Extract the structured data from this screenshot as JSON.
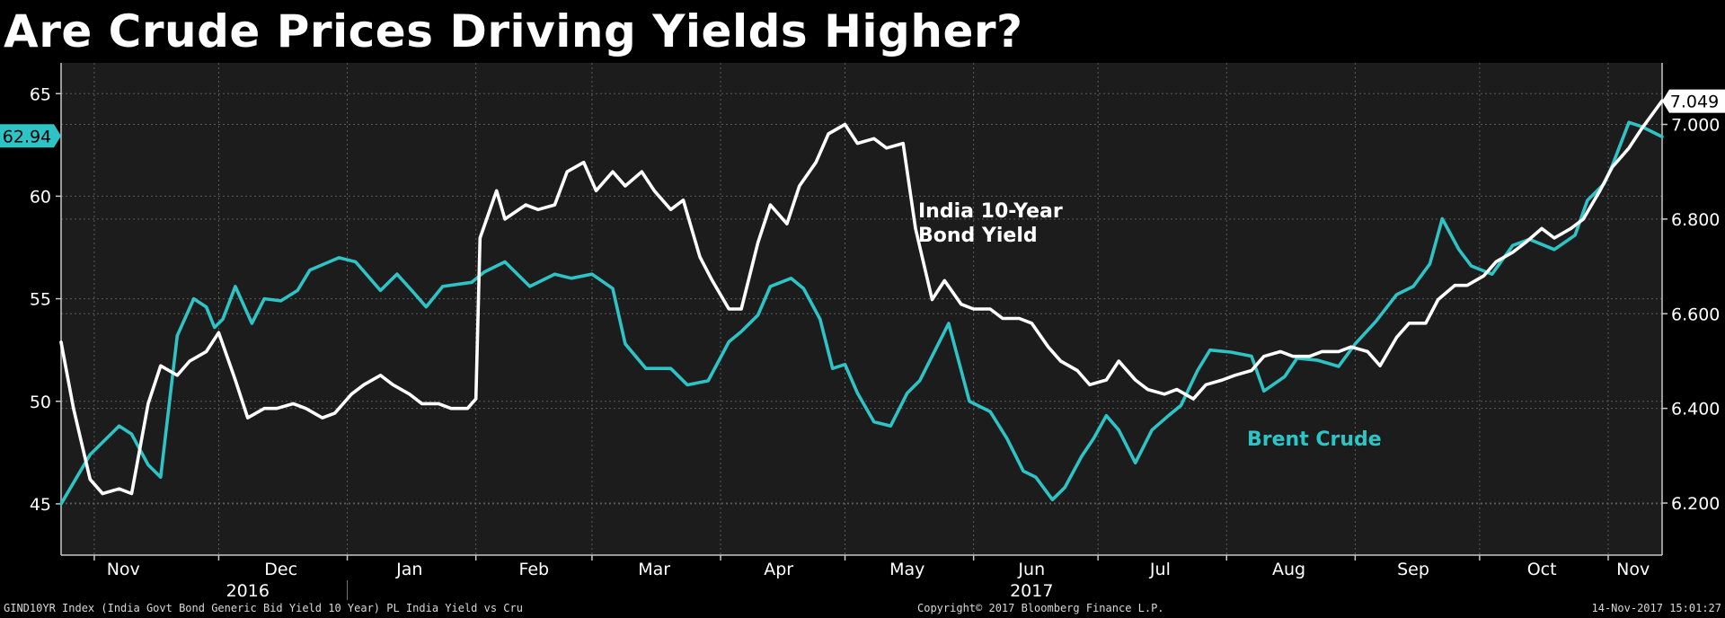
{
  "chart_data": {
    "type": "line",
    "title": "Are Crude Prices Driving Yields Higher?",
    "x_months": [
      "Nov",
      "Dec",
      "Jan",
      "Feb",
      "Mar",
      "Apr",
      "May",
      "Jun",
      "Jul",
      "Aug",
      "Sep",
      "Oct",
      "Nov"
    ],
    "x_years": [
      "2016",
      "2017"
    ],
    "x_range": [
      "2016-10-24",
      "2017-11-14"
    ],
    "left_axis": {
      "ticks": [
        "45",
        "50",
        "55",
        "60",
        "65"
      ],
      "range": [
        42.5,
        66.5
      ],
      "current_value_label": "62.94"
    },
    "right_axis": {
      "ticks": [
        "6.200",
        "6.400",
        "6.600",
        "6.800",
        "7.000"
      ],
      "range": [
        6.09,
        7.13
      ],
      "current_value_label": "7.049"
    },
    "grid": true,
    "series": [
      {
        "name": "Brent Crude",
        "axis": "left",
        "color": "#2ec4c6",
        "x": [
          "2016-10-24",
          "2016-10-31",
          "2016-11-07",
          "2016-11-10",
          "2016-11-14",
          "2016-11-17",
          "2016-11-21",
          "2016-11-25",
          "2016-11-28",
          "2016-11-30",
          "2016-12-02",
          "2016-12-05",
          "2016-12-09",
          "2016-12-12",
          "2016-12-16",
          "2016-12-20",
          "2016-12-23",
          "2016-12-30",
          "2017-01-03",
          "2017-01-09",
          "2017-01-13",
          "2017-01-17",
          "2017-01-20",
          "2017-01-24",
          "2017-01-31",
          "2017-02-03",
          "2017-02-08",
          "2017-02-14",
          "2017-02-20",
          "2017-02-24",
          "2017-03-01",
          "2017-03-06",
          "2017-03-09",
          "2017-03-14",
          "2017-03-20",
          "2017-03-24",
          "2017-03-29",
          "2017-04-03",
          "2017-04-06",
          "2017-04-10",
          "2017-04-13",
          "2017-04-18",
          "2017-04-21",
          "2017-04-25",
          "2017-04-28",
          "2017-05-01",
          "2017-05-04",
          "2017-05-08",
          "2017-05-12",
          "2017-05-16",
          "2017-05-19",
          "2017-05-24",
          "2017-05-26",
          "2017-05-31",
          "2017-06-05",
          "2017-06-09",
          "2017-06-13",
          "2017-06-16",
          "2017-06-20",
          "2017-06-23",
          "2017-06-27",
          "2017-06-30",
          "2017-07-03",
          "2017-07-06",
          "2017-07-10",
          "2017-07-14",
          "2017-07-18",
          "2017-07-21",
          "2017-07-25",
          "2017-07-28",
          "2017-08-02",
          "2017-08-07",
          "2017-08-10",
          "2017-08-15",
          "2017-08-18",
          "2017-08-23",
          "2017-08-28",
          "2017-09-01",
          "2017-09-06",
          "2017-09-11",
          "2017-09-15",
          "2017-09-19",
          "2017-09-22",
          "2017-09-26",
          "2017-09-29",
          "2017-10-04",
          "2017-10-09",
          "2017-10-13",
          "2017-10-19",
          "2017-10-24",
          "2017-10-27",
          "2017-10-31",
          "2017-11-02",
          "2017-11-06",
          "2017-11-09",
          "2017-11-14"
        ],
        "y": [
          45.0,
          47.4,
          48.8,
          48.4,
          46.9,
          46.3,
          53.2,
          55.0,
          54.6,
          53.6,
          54.0,
          55.6,
          53.8,
          55.0,
          54.9,
          55.4,
          56.4,
          57.0,
          56.8,
          55.4,
          56.2,
          55.3,
          54.6,
          55.6,
          55.8,
          56.3,
          56.8,
          55.6,
          56.2,
          56.0,
          56.2,
          55.5,
          52.8,
          51.6,
          51.6,
          50.8,
          51.0,
          52.9,
          53.4,
          54.2,
          55.6,
          56.0,
          55.5,
          54.0,
          51.6,
          51.8,
          50.4,
          49.0,
          48.8,
          50.4,
          51.0,
          53.0,
          53.8,
          50.0,
          49.5,
          48.2,
          46.6,
          46.3,
          45.2,
          45.8,
          47.3,
          48.2,
          49.3,
          48.6,
          47.0,
          48.6,
          49.3,
          49.8,
          51.5,
          52.5,
          52.4,
          52.2,
          50.5,
          51.2,
          52.1,
          52.0,
          51.7,
          52.8,
          53.9,
          55.2,
          55.6,
          56.7,
          58.9,
          57.4,
          56.6,
          56.2,
          57.6,
          57.9,
          57.4,
          58.1,
          59.8,
          60.6,
          61.5,
          63.6,
          63.4,
          62.9
        ],
        "label": "Brent Crude"
      },
      {
        "name": "India 10-Year Bond Yield",
        "axis": "right",
        "color": "#ffffff",
        "x": [
          "2016-10-24",
          "2016-10-27",
          "2016-10-31",
          "2016-11-03",
          "2016-11-07",
          "2016-11-10",
          "2016-11-14",
          "2016-11-17",
          "2016-11-21",
          "2016-11-24",
          "2016-11-28",
          "2016-12-01",
          "2016-12-05",
          "2016-12-08",
          "2016-12-12",
          "2016-12-15",
          "2016-12-19",
          "2016-12-22",
          "2016-12-26",
          "2016-12-29",
          "2017-01-02",
          "2017-01-05",
          "2017-01-09",
          "2017-01-12",
          "2017-01-16",
          "2017-01-19",
          "2017-01-23",
          "2017-01-26",
          "2017-01-30",
          "2017-02-01",
          "2017-02-02",
          "2017-02-06",
          "2017-02-08",
          "2017-02-13",
          "2017-02-16",
          "2017-02-20",
          "2017-02-23",
          "2017-02-27",
          "2017-03-02",
          "2017-03-06",
          "2017-03-09",
          "2017-03-13",
          "2017-03-16",
          "2017-03-20",
          "2017-03-23",
          "2017-03-27",
          "2017-03-30",
          "2017-04-03",
          "2017-04-06",
          "2017-04-10",
          "2017-04-13",
          "2017-04-17",
          "2017-04-20",
          "2017-04-24",
          "2017-04-27",
          "2017-05-01",
          "2017-05-04",
          "2017-05-08",
          "2017-05-11",
          "2017-05-15",
          "2017-05-18",
          "2017-05-22",
          "2017-05-25",
          "2017-05-29",
          "2017-06-01",
          "2017-06-05",
          "2017-06-08",
          "2017-06-12",
          "2017-06-15",
          "2017-06-19",
          "2017-06-22",
          "2017-06-26",
          "2017-06-29",
          "2017-07-03",
          "2017-07-06",
          "2017-07-10",
          "2017-07-13",
          "2017-07-17",
          "2017-07-20",
          "2017-07-24",
          "2017-07-27",
          "2017-07-31",
          "2017-08-03",
          "2017-08-07",
          "2017-08-10",
          "2017-08-14",
          "2017-08-17",
          "2017-08-21",
          "2017-08-24",
          "2017-08-28",
          "2017-08-31",
          "2017-09-04",
          "2017-09-07",
          "2017-09-11",
          "2017-09-14",
          "2017-09-18",
          "2017-09-21",
          "2017-09-25",
          "2017-09-28",
          "2017-10-02",
          "2017-10-05",
          "2017-10-09",
          "2017-10-12",
          "2017-10-16",
          "2017-10-19",
          "2017-10-23",
          "2017-10-26",
          "2017-10-30",
          "2017-11-02",
          "2017-11-06",
          "2017-11-09",
          "2017-11-14"
        ],
        "y": [
          6.54,
          6.4,
          6.25,
          6.22,
          6.23,
          6.22,
          6.41,
          6.49,
          6.47,
          6.5,
          6.52,
          6.56,
          6.46,
          6.38,
          6.4,
          6.4,
          6.41,
          6.4,
          6.38,
          6.39,
          6.43,
          6.45,
          6.47,
          6.45,
          6.43,
          6.41,
          6.41,
          6.4,
          6.4,
          6.42,
          6.76,
          6.86,
          6.8,
          6.83,
          6.82,
          6.83,
          6.9,
          6.92,
          6.86,
          6.9,
          6.87,
          6.9,
          6.86,
          6.82,
          6.84,
          6.72,
          6.67,
          6.61,
          6.61,
          6.75,
          6.83,
          6.79,
          6.87,
          6.92,
          6.98,
          7.0,
          6.96,
          6.97,
          6.95,
          6.96,
          6.78,
          6.63,
          6.67,
          6.62,
          6.61,
          6.61,
          6.59,
          6.59,
          6.58,
          6.53,
          6.5,
          6.48,
          6.45,
          6.46,
          6.5,
          6.46,
          6.44,
          6.43,
          6.44,
          6.42,
          6.45,
          6.46,
          6.47,
          6.48,
          6.51,
          6.52,
          6.51,
          6.51,
          6.52,
          6.52,
          6.53,
          6.52,
          6.49,
          6.55,
          6.58,
          6.58,
          6.63,
          6.66,
          6.66,
          6.68,
          6.71,
          6.73,
          6.75,
          6.78,
          6.76,
          6.78,
          6.8,
          6.86,
          6.91,
          6.95,
          6.99,
          7.05
        ],
        "label_lines": [
          "India 10-Year",
          "Bond Yield"
        ]
      }
    ]
  },
  "footer": {
    "left": "GIND10YR Index (India Govt Bond Generic Bid Yield 10 Year) PL India Yield vs Cru",
    "center": "Copyright© 2017 Bloomberg Finance L.P.",
    "right": "14-Nov-2017 15:01:27"
  }
}
